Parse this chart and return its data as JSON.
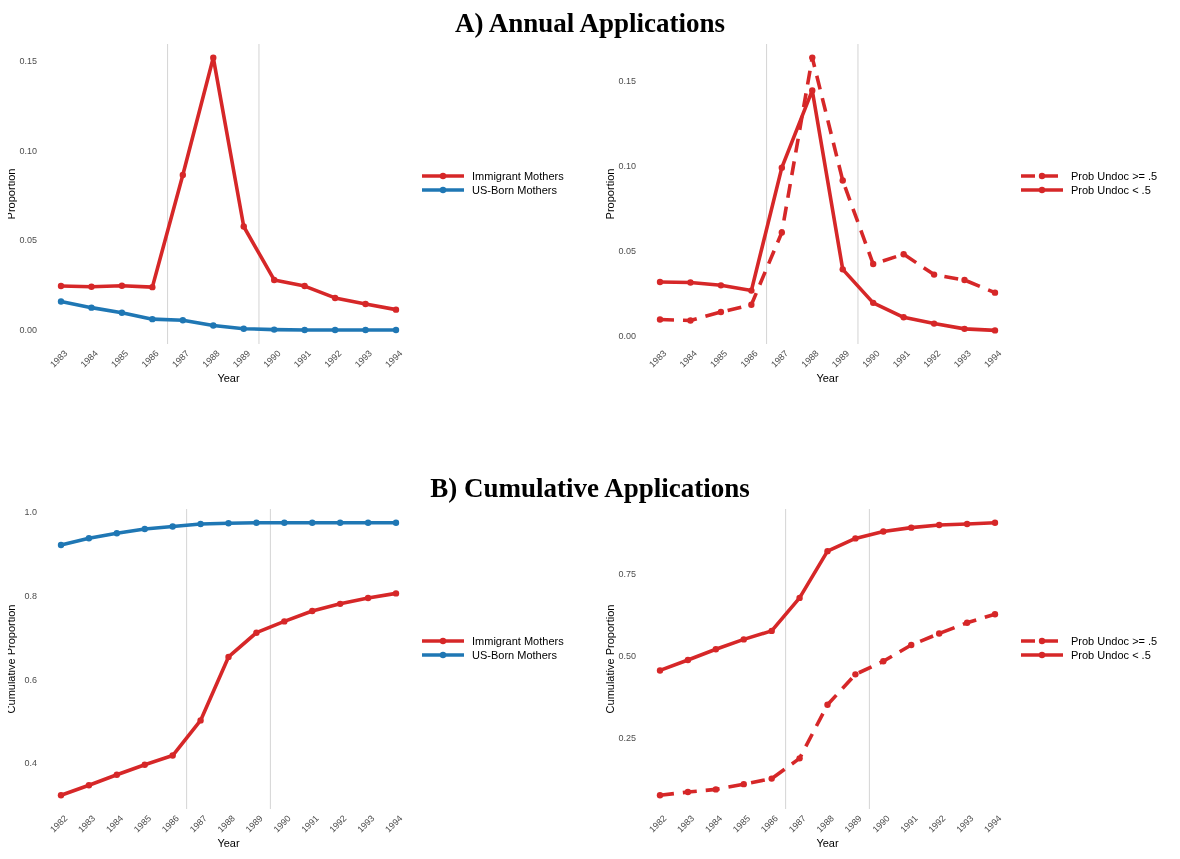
{
  "chart_data": [
    {
      "type": "other",
      "title": "A) Annual Applications"
    },
    {
      "type": "line",
      "xlabel": "Year",
      "ylabel": "Proportion",
      "x": [
        1983,
        1984,
        1985,
        1986,
        1987,
        1988,
        1989,
        1990,
        1991,
        1992,
        1993,
        1994
      ],
      "xlim": [
        1983,
        1994
      ],
      "xticks": [
        1983,
        1984,
        1985,
        1986,
        1987,
        1988,
        1989,
        1990,
        1991,
        1992,
        1993,
        1994
      ],
      "ylim": [
        -0.0076,
        0.1591
      ],
      "yticks": [
        {
          "value": 0,
          "label": "0.00"
        },
        {
          "value": 0.05,
          "label": "0.05"
        },
        {
          "value": 0.1,
          "label": "0.10"
        },
        {
          "value": 0.15,
          "label": "0.15"
        }
      ],
      "legend": "right",
      "marker": "circle",
      "ref_lines": [
        {
          "axis": "x",
          "value": 1986.5,
          "color": "#d4d4d4"
        },
        {
          "axis": "x",
          "value": 1989.5,
          "color": "#d4d4d4"
        }
      ],
      "series": [
        {
          "name": "Immigrant Mothers",
          "color": "#d62728",
          "line_style": "solid",
          "values": [
            0.0246,
            0.0242,
            0.0248,
            0.024,
            0.0863,
            0.1515,
            0.0577,
            0.028,
            0.0246,
            0.018,
            0.0146,
            0.0115
          ]
        },
        {
          "name": "US-Born Mothers",
          "color": "#1f77b4",
          "line_style": "solid",
          "values": [
            0.016,
            0.0126,
            0.0098,
            0.0062,
            0.0056,
            0.0027,
            0.0009,
            0.0004,
            0.0002,
            0.0002,
            0.0002,
            0.0002
          ]
        }
      ]
    },
    {
      "type": "line",
      "xlabel": "Year",
      "ylabel": "Proportion",
      "x": [
        1983,
        1984,
        1985,
        1986,
        1987,
        1988,
        1989,
        1990,
        1991,
        1992,
        1993,
        1994
      ],
      "xlim": [
        1983,
        1994
      ],
      "xticks": [
        1983,
        1984,
        1985,
        1986,
        1987,
        1988,
        1989,
        1990,
        1991,
        1992,
        1993,
        1994
      ],
      "ylim": [
        -0.0045,
        0.1719
      ],
      "yticks": [
        {
          "value": 0,
          "label": "0.00"
        },
        {
          "value": 0.05,
          "label": "0.05"
        },
        {
          "value": 0.1,
          "label": "0.10"
        },
        {
          "value": 0.15,
          "label": "0.15"
        }
      ],
      "legend": "right",
      "marker": "circle",
      "ref_lines": [
        {
          "axis": "x",
          "value": 1986.5,
          "color": "#d4d4d4"
        },
        {
          "axis": "x",
          "value": 1989.5,
          "color": "#d4d4d4"
        }
      ],
      "series": [
        {
          "name": "Prob Undoc >= .5",
          "color": "#d62728",
          "line_style": "dashed",
          "values": [
            0.0099,
            0.0093,
            0.0143,
            0.0186,
            0.0611,
            0.1639,
            0.0916,
            0.0425,
            0.0483,
            0.0363,
            0.0331,
            0.0257
          ]
        },
        {
          "name": "Prob Undoc < .5",
          "color": "#d62728",
          "line_style": "solid",
          "values": [
            0.032,
            0.0317,
            0.03,
            0.0269,
            0.0992,
            0.1446,
            0.0394,
            0.0197,
            0.0112,
            0.0075,
            0.0044,
            0.0035
          ]
        }
      ]
    },
    {
      "type": "other",
      "title": "B) Cumulative Applications"
    },
    {
      "type": "line",
      "xlabel": "Year",
      "ylabel": "Cumulative Proportion",
      "x": [
        1982,
        1983,
        1984,
        1985,
        1986,
        1987,
        1988,
        1989,
        1990,
        1991,
        1992,
        1993,
        1994
      ],
      "xlim": [
        1982,
        1994
      ],
      "xticks": [
        1982,
        1983,
        1984,
        1985,
        1986,
        1987,
        1988,
        1989,
        1990,
        1991,
        1992,
        1993,
        1994
      ],
      "ylim": [
        0.29,
        1.008
      ],
      "yticks": [
        0.4,
        0.6,
        0.8,
        {
          "value": 1,
          "label": "1.0"
        }
      ],
      "legend": "right",
      "marker": "circle",
      "ref_lines": [
        {
          "axis": "x",
          "value": 1986.5,
          "color": "#d4d4d4"
        },
        {
          "axis": "x",
          "value": 1989.5,
          "color": "#d4d4d4"
        }
      ],
      "series": [
        {
          "name": "Immigrant Mothers",
          "color": "#d62728",
          "line_style": "solid",
          "values": [
            0.323,
            0.347,
            0.372,
            0.396,
            0.418,
            0.502,
            0.654,
            0.712,
            0.739,
            0.764,
            0.781,
            0.795,
            0.806
          ]
        },
        {
          "name": "US-Born Mothers",
          "color": "#1f77b4",
          "line_style": "solid",
          "values": [
            0.922,
            0.938,
            0.95,
            0.96,
            0.966,
            0.972,
            0.974,
            0.975,
            0.975,
            0.975,
            0.975,
            0.975,
            0.975
          ]
        }
      ]
    },
    {
      "type": "line",
      "xlabel": "Year",
      "ylabel": "Cumulative Proportion",
      "x": [
        1982,
        1983,
        1984,
        1985,
        1986,
        1987,
        1988,
        1989,
        1990,
        1991,
        1992,
        1993,
        1994
      ],
      "xlim": [
        1982,
        1994
      ],
      "xticks": [
        1982,
        1983,
        1984,
        1985,
        1986,
        1987,
        1988,
        1989,
        1990,
        1991,
        1992,
        1993,
        1994
      ],
      "ylim": [
        0.031,
        0.949
      ],
      "yticks": [
        0.25,
        {
          "value": 0.5,
          "label": "0.50"
        },
        0.75
      ],
      "legend": "right",
      "marker": "circle",
      "ref_lines": [
        {
          "axis": "x",
          "value": 1986.5,
          "color": "#d4d4d4"
        },
        {
          "axis": "x",
          "value": 1989.5,
          "color": "#d4d4d4"
        }
      ],
      "series": [
        {
          "name": "Prob Undoc >= .5",
          "color": "#d62728",
          "line_style": "dashed",
          "values": [
            0.073,
            0.083,
            0.091,
            0.107,
            0.124,
            0.186,
            0.35,
            0.443,
            0.483,
            0.533,
            0.568,
            0.601,
            0.627
          ]
        },
        {
          "name": "Prob Undoc < .5",
          "color": "#d62728",
          "line_style": "solid",
          "values": [
            0.455,
            0.487,
            0.52,
            0.55,
            0.576,
            0.677,
            0.82,
            0.859,
            0.88,
            0.892,
            0.9,
            0.903,
            0.907
          ]
        }
      ]
    }
  ]
}
